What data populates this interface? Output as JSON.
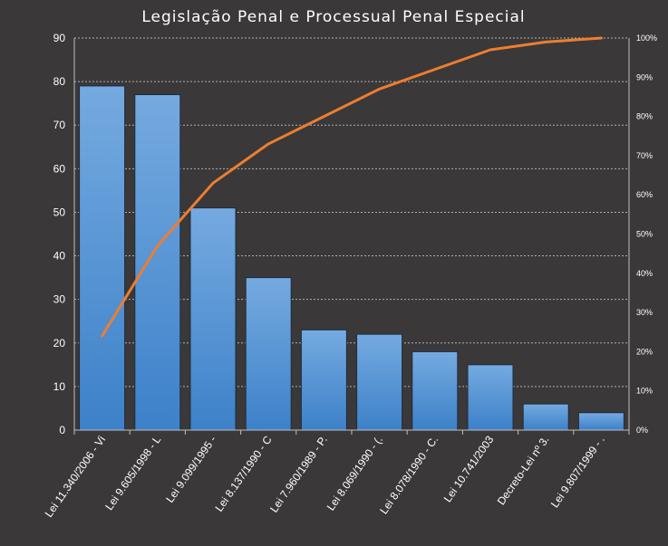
{
  "chart_data": {
    "type": "bar",
    "title": "Legislação Penal e Processual Penal Especial",
    "categories": [
      "Lei 11.340/2006 - Vi",
      "Lei 9.605/1998 - L",
      "Lei 9.099/1995 -",
      "Lei 8.137/1990 - C",
      "Lei 7.960/1989 - P.",
      "Lei 8.069/1990 - (.",
      "Lei 8.078/1990 - C.",
      "Lei 10.741/2003",
      "Decreto-Lei nº 3.",
      "Lei 9.807/1999 - ."
    ],
    "series": [
      {
        "values": [
          79,
          77,
          51,
          35,
          23,
          22,
          18,
          15,
          6,
          4
        ],
        "color": "#5b9bd5",
        "axis": "left"
      },
      {
        "type": "line",
        "values": [
          0.24,
          0.47,
          0.63,
          0.73,
          0.8,
          0.87,
          0.92,
          0.97,
          0.99,
          1.0
        ],
        "color": "#ed7d31",
        "axis": "right"
      }
    ],
    "ylim": [
      0,
      90
    ],
    "yticks": [
      0,
      10,
      20,
      30,
      40,
      50,
      60,
      70,
      80,
      90
    ],
    "y2lim": [
      0,
      1
    ],
    "y2ticks": [
      "0%",
      "10%",
      "20%",
      "30%",
      "40%",
      "50%",
      "60%",
      "70%",
      "80%",
      "90%",
      "100%"
    ],
    "grid": true,
    "legend": "none",
    "background": "#3a3838",
    "text_color": "#ffffff"
  }
}
